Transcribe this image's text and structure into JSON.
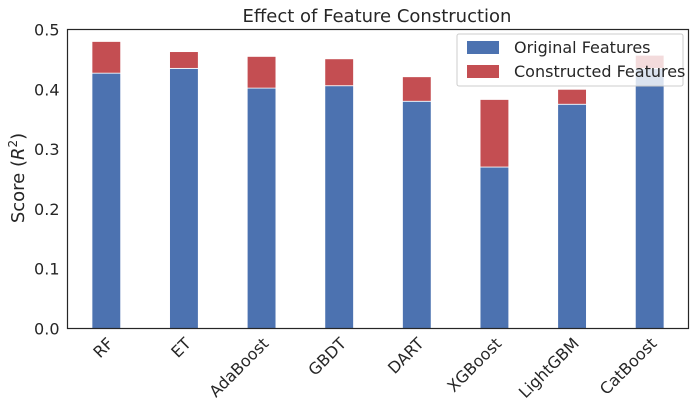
{
  "chart_data": {
    "type": "bar",
    "stacked": true,
    "title": "Effect of Feature Construction",
    "xlabel": "",
    "ylabel": "Score ($R^2$)",
    "ylim": [
      0,
      0.5
    ],
    "yticks": [
      "0.0",
      "0.1",
      "0.2",
      "0.3",
      "0.4",
      "0.5"
    ],
    "categories": [
      "RF",
      "ET",
      "AdaBoost",
      "GBDT",
      "DART",
      "XGBoost",
      "LightGBM",
      "CatBoost"
    ],
    "series": [
      {
        "name": "Original Features",
        "color": "#4c72b0",
        "values": [
          0.427,
          0.435,
          0.402,
          0.406,
          0.38,
          0.27,
          0.375,
          0.435
        ]
      },
      {
        "name": "Constructed Features",
        "color": "#c44e52",
        "values": [
          0.053,
          0.028,
          0.053,
          0.045,
          0.041,
          0.113,
          0.025,
          0.022
        ]
      }
    ],
    "legend_position": "top-right",
    "grid": false
  }
}
